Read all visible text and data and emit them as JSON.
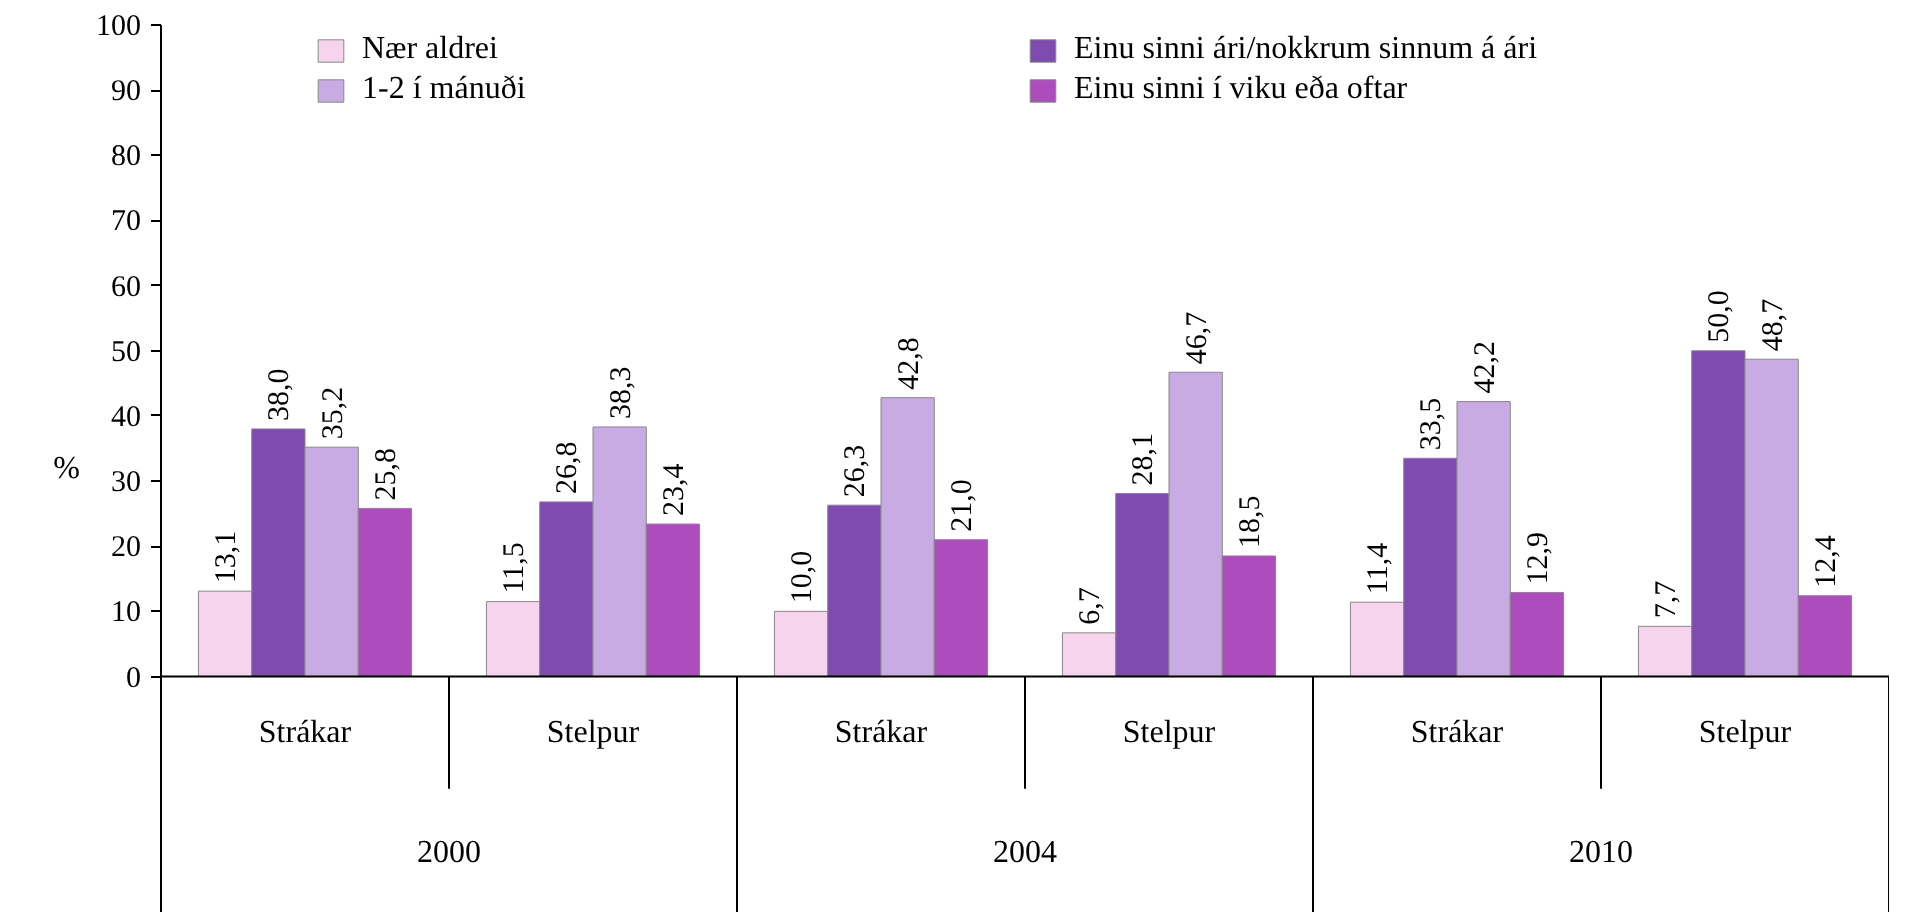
{
  "chart_data": {
    "type": "bar",
    "ylabel": "%",
    "categories": [
      "Strákar",
      "Stelpur",
      "Strákar",
      "Stelpur",
      "Strákar",
      "Stelpur"
    ],
    "annotations": [
      "2000",
      "2004",
      "2010"
    ],
    "series": [
      {
        "name": "Nær aldrei",
        "color": "#f6d5ec",
        "values": [
          13.1,
          11.5,
          10.0,
          6.7,
          11.4,
          7.7
        ],
        "value_labels": [
          "13,1",
          "11,5",
          "10,0",
          "6,7",
          "11,4",
          "7,7"
        ]
      },
      {
        "name": "Einu sinni ári/nokkrum sinnum á ári",
        "color": "#7f4bb1",
        "values": [
          38.0,
          26.8,
          26.3,
          28.1,
          33.5,
          50.0
        ],
        "value_labels": [
          "38,0",
          "26,8",
          "26,3",
          "28,1",
          "33,5",
          "50,0"
        ]
      },
      {
        "name": "1-2 í mánuði",
        "color": "#c9abe3",
        "values": [
          35.2,
          38.3,
          42.8,
          46.7,
          42.2,
          48.7
        ],
        "value_labels": [
          "35,2",
          "38,3",
          "42,8",
          "46,7",
          "42,2",
          "48,7"
        ]
      },
      {
        "name": "Einu sinni í viku eða oftar",
        "color": "#ac4cbd",
        "values": [
          25.8,
          23.4,
          21.0,
          18.5,
          12.9,
          12.4
        ],
        "value_labels": [
          "25,8",
          "23,4",
          "21,0",
          "18,5",
          "12,9",
          "12,4"
        ]
      }
    ],
    "ylim": [
      0,
      100
    ],
    "yticks": [
      0,
      10,
      20,
      30,
      40,
      50,
      60,
      70,
      80,
      90,
      100
    ],
    "grid": false,
    "legend": "top"
  }
}
